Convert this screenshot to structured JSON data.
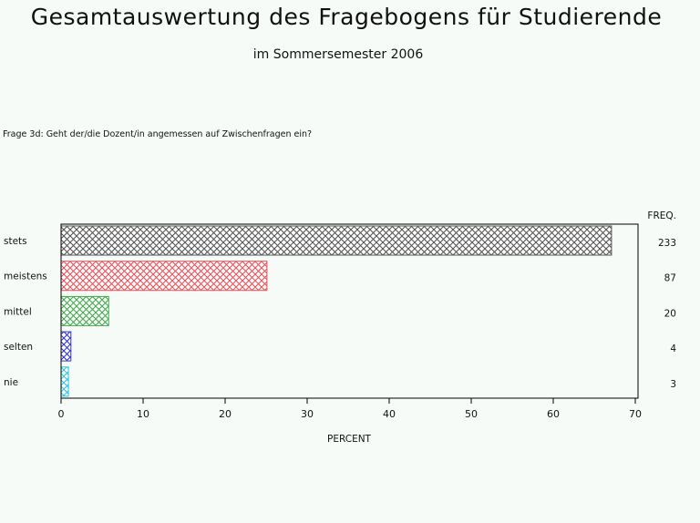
{
  "title": "Gesamtauswertung des Fragebogens für Studierende",
  "subtitle": "im Sommersemester 2006",
  "question": "Frage 3d: Geht der/die Dozent/in angemessen auf Zwischenfragen ein?",
  "chart_data": {
    "type": "bar",
    "orientation": "horizontal",
    "categories": [
      "stets",
      "meistens",
      "mittel",
      "selten",
      "nie"
    ],
    "values": [
      67.1,
      25.1,
      5.8,
      1.2,
      0.9
    ],
    "freq_label": "FREQ.",
    "freq": [
      "233",
      "87",
      "20",
      "4",
      "3"
    ],
    "xlabel": "PERCENT",
    "xlim": [
      0,
      70
    ],
    "xticks": [
      "0",
      "10",
      "20",
      "30",
      "40",
      "50",
      "60",
      "70"
    ],
    "bar_colors": [
      "#555555",
      "#e8505a",
      "#3fa84a",
      "#3535cc",
      "#2ec8d8"
    ],
    "bar_pattern": "crosshatch"
  }
}
